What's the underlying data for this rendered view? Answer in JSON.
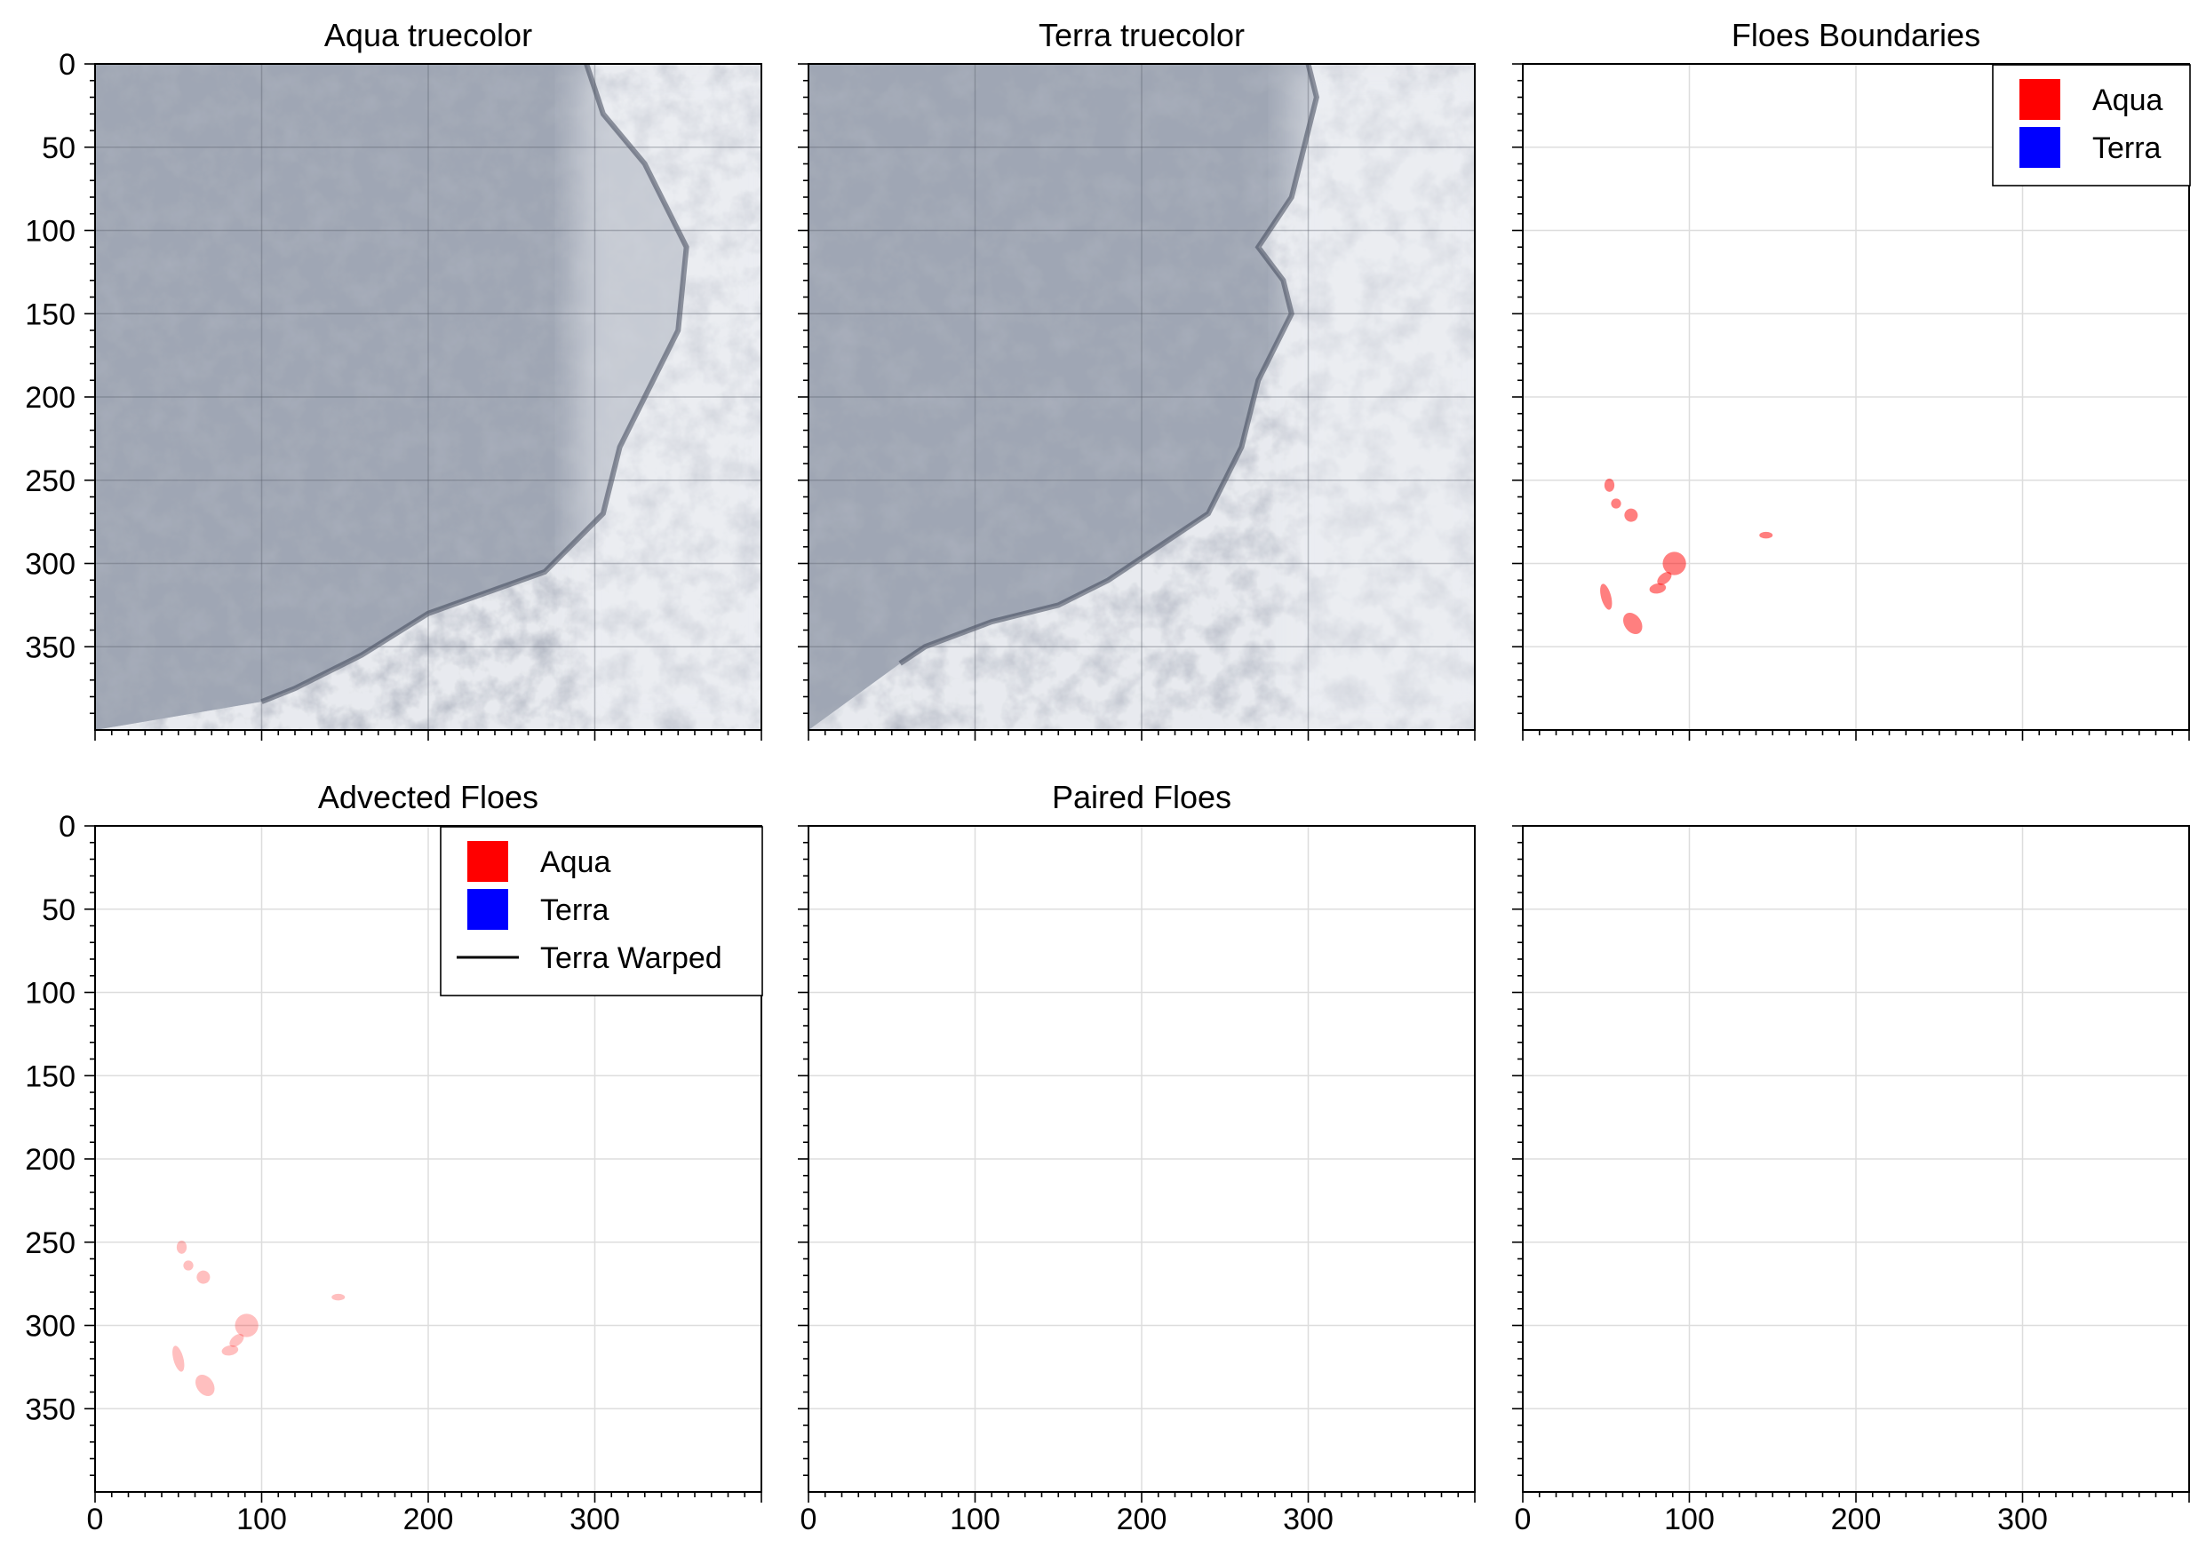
{
  "figure": {
    "layout": "2x3 panel grid",
    "shared_axes": true
  },
  "chart_data": [
    {
      "id": "aqua",
      "type": "image",
      "title": "Aqua truecolor",
      "xlim": [
        0,
        400
      ],
      "ylim": [
        400,
        0
      ],
      "xticks": [
        0,
        100,
        200,
        300
      ],
      "yticks": [
        0,
        50,
        100,
        150,
        200,
        250,
        300,
        350
      ],
      "show_xticklabels": false,
      "show_yticklabels": true,
      "grid": true,
      "image": "satellite true-color scene: sea ice floes and clouds (left), open water boundary curving from top-right to bottom-left, white cloud cover (right)",
      "coastline": [
        [
          295,
          0
        ],
        [
          300,
          15
        ],
        [
          305,
          30
        ],
        [
          330,
          60
        ],
        [
          355,
          110
        ],
        [
          350,
          160
        ],
        [
          335,
          190
        ],
        [
          315,
          230
        ],
        [
          305,
          270
        ],
        [
          270,
          305
        ],
        [
          200,
          330
        ],
        [
          160,
          355
        ],
        [
          120,
          375
        ],
        [
          100,
          383
        ]
      ]
    },
    {
      "id": "terra",
      "type": "image",
      "title": "Terra truecolor",
      "xlim": [
        0,
        400
      ],
      "ylim": [
        400,
        0
      ],
      "xticks": [
        0,
        100,
        200,
        300
      ],
      "yticks": [
        0,
        50,
        100,
        150,
        200,
        250,
        300,
        350
      ],
      "show_xticklabels": false,
      "show_yticklabels": false,
      "grid": true,
      "image": "satellite true-color scene, same region as Aqua",
      "coastline": [
        [
          300,
          0
        ],
        [
          305,
          20
        ],
        [
          300,
          40
        ],
        [
          290,
          80
        ],
        [
          270,
          110
        ],
        [
          285,
          130
        ],
        [
          290,
          150
        ],
        [
          270,
          190
        ],
        [
          260,
          230
        ],
        [
          240,
          270
        ],
        [
          180,
          310
        ],
        [
          150,
          325
        ],
        [
          110,
          335
        ],
        [
          70,
          350
        ],
        [
          55,
          360
        ]
      ]
    },
    {
      "id": "floes_boundaries",
      "type": "scatter",
      "title": "Floes Boundaries",
      "xlim": [
        0,
        400
      ],
      "ylim": [
        400,
        0
      ],
      "xticks": [
        0,
        100,
        200,
        300
      ],
      "yticks": [
        0,
        50,
        100,
        150,
        200,
        250,
        300,
        350
      ],
      "show_xticklabels": false,
      "show_yticklabels": false,
      "grid": true,
      "legend": {
        "position": "top-right",
        "entries": [
          {
            "label": "Aqua",
            "color": "#ff0000",
            "kind": "patch"
          },
          {
            "label": "Terra",
            "color": "#0000ff",
            "kind": "patch"
          }
        ]
      },
      "series": [
        {
          "name": "Aqua",
          "color": "#ff0000",
          "opacity": 0.5,
          "floes": [
            {
              "cx": 52,
              "cy": 253,
              "rx": 3,
              "ry": 4,
              "rot": 0
            },
            {
              "cx": 56,
              "cy": 264,
              "rx": 3,
              "ry": 3,
              "rot": 0
            },
            {
              "cx": 65,
              "cy": 271,
              "rx": 4,
              "ry": 4,
              "rot": 20
            },
            {
              "cx": 146,
              "cy": 283,
              "rx": 4,
              "ry": 2,
              "rot": 0
            },
            {
              "cx": 91,
              "cy": 300,
              "rx": 7,
              "ry": 7,
              "rot": 0
            },
            {
              "cx": 85,
              "cy": 309,
              "rx": 5,
              "ry": 3,
              "rot": -40
            },
            {
              "cx": 81,
              "cy": 315,
              "rx": 5,
              "ry": 3,
              "rot": -10
            },
            {
              "cx": 50,
              "cy": 320,
              "rx": 3,
              "ry": 8,
              "rot": -15
            },
            {
              "cx": 66,
              "cy": 336,
              "rx": 5,
              "ry": 7,
              "rot": -35
            }
          ]
        },
        {
          "name": "Terra",
          "color": "#0000ff",
          "opacity": 0.5,
          "floes": []
        }
      ]
    },
    {
      "id": "advected_floes",
      "type": "scatter",
      "title": "Advected Floes",
      "xlim": [
        0,
        400
      ],
      "ylim": [
        400,
        0
      ],
      "xticks": [
        0,
        100,
        200,
        300
      ],
      "yticks": [
        0,
        50,
        100,
        150,
        200,
        250,
        300,
        350
      ],
      "show_xticklabels": true,
      "show_yticklabels": true,
      "grid": true,
      "legend": {
        "position": "top-right",
        "entries": [
          {
            "label": "Aqua",
            "color": "#ff0000",
            "kind": "patch"
          },
          {
            "label": "Terra",
            "color": "#0000ff",
            "kind": "patch"
          },
          {
            "label": "Terra Warped",
            "color": "#000000",
            "kind": "line"
          }
        ]
      },
      "series": [
        {
          "name": "Aqua",
          "color": "#ff0000",
          "opacity": 0.25,
          "floes": [
            {
              "cx": 52,
              "cy": 253,
              "rx": 3,
              "ry": 4,
              "rot": 0
            },
            {
              "cx": 56,
              "cy": 264,
              "rx": 3,
              "ry": 3,
              "rot": 0
            },
            {
              "cx": 65,
              "cy": 271,
              "rx": 4,
              "ry": 4,
              "rot": 20
            },
            {
              "cx": 146,
              "cy": 283,
              "rx": 4,
              "ry": 2,
              "rot": 0
            },
            {
              "cx": 91,
              "cy": 300,
              "rx": 7,
              "ry": 7,
              "rot": 0
            },
            {
              "cx": 85,
              "cy": 309,
              "rx": 5,
              "ry": 3,
              "rot": -40
            },
            {
              "cx": 81,
              "cy": 315,
              "rx": 5,
              "ry": 3,
              "rot": -10
            },
            {
              "cx": 50,
              "cy": 320,
              "rx": 3,
              "ry": 8,
              "rot": -15
            },
            {
              "cx": 66,
              "cy": 336,
              "rx": 5,
              "ry": 7,
              "rot": -35
            }
          ]
        },
        {
          "name": "Terra",
          "color": "#0000ff",
          "opacity": 0.25,
          "floes": []
        },
        {
          "name": "Terra Warped",
          "color": "#000000",
          "floes": []
        }
      ]
    },
    {
      "id": "paired_floes",
      "type": "scatter",
      "title": "Paired Floes",
      "xlim": [
        0,
        400
      ],
      "ylim": [
        400,
        0
      ],
      "xticks": [
        0,
        100,
        200,
        300
      ],
      "yticks": [
        0,
        50,
        100,
        150,
        200,
        250,
        300,
        350
      ],
      "show_xticklabels": true,
      "show_yticklabels": false,
      "grid": true,
      "series": []
    },
    {
      "id": "empty",
      "type": "scatter",
      "title": "",
      "xlim": [
        0,
        400
      ],
      "ylim": [
        400,
        0
      ],
      "xticks": [
        0,
        100,
        200,
        300
      ],
      "yticks": [
        0,
        50,
        100,
        150,
        200,
        250,
        300,
        350
      ],
      "show_xticklabels": true,
      "show_yticklabels": false,
      "grid": true,
      "series": []
    }
  ]
}
